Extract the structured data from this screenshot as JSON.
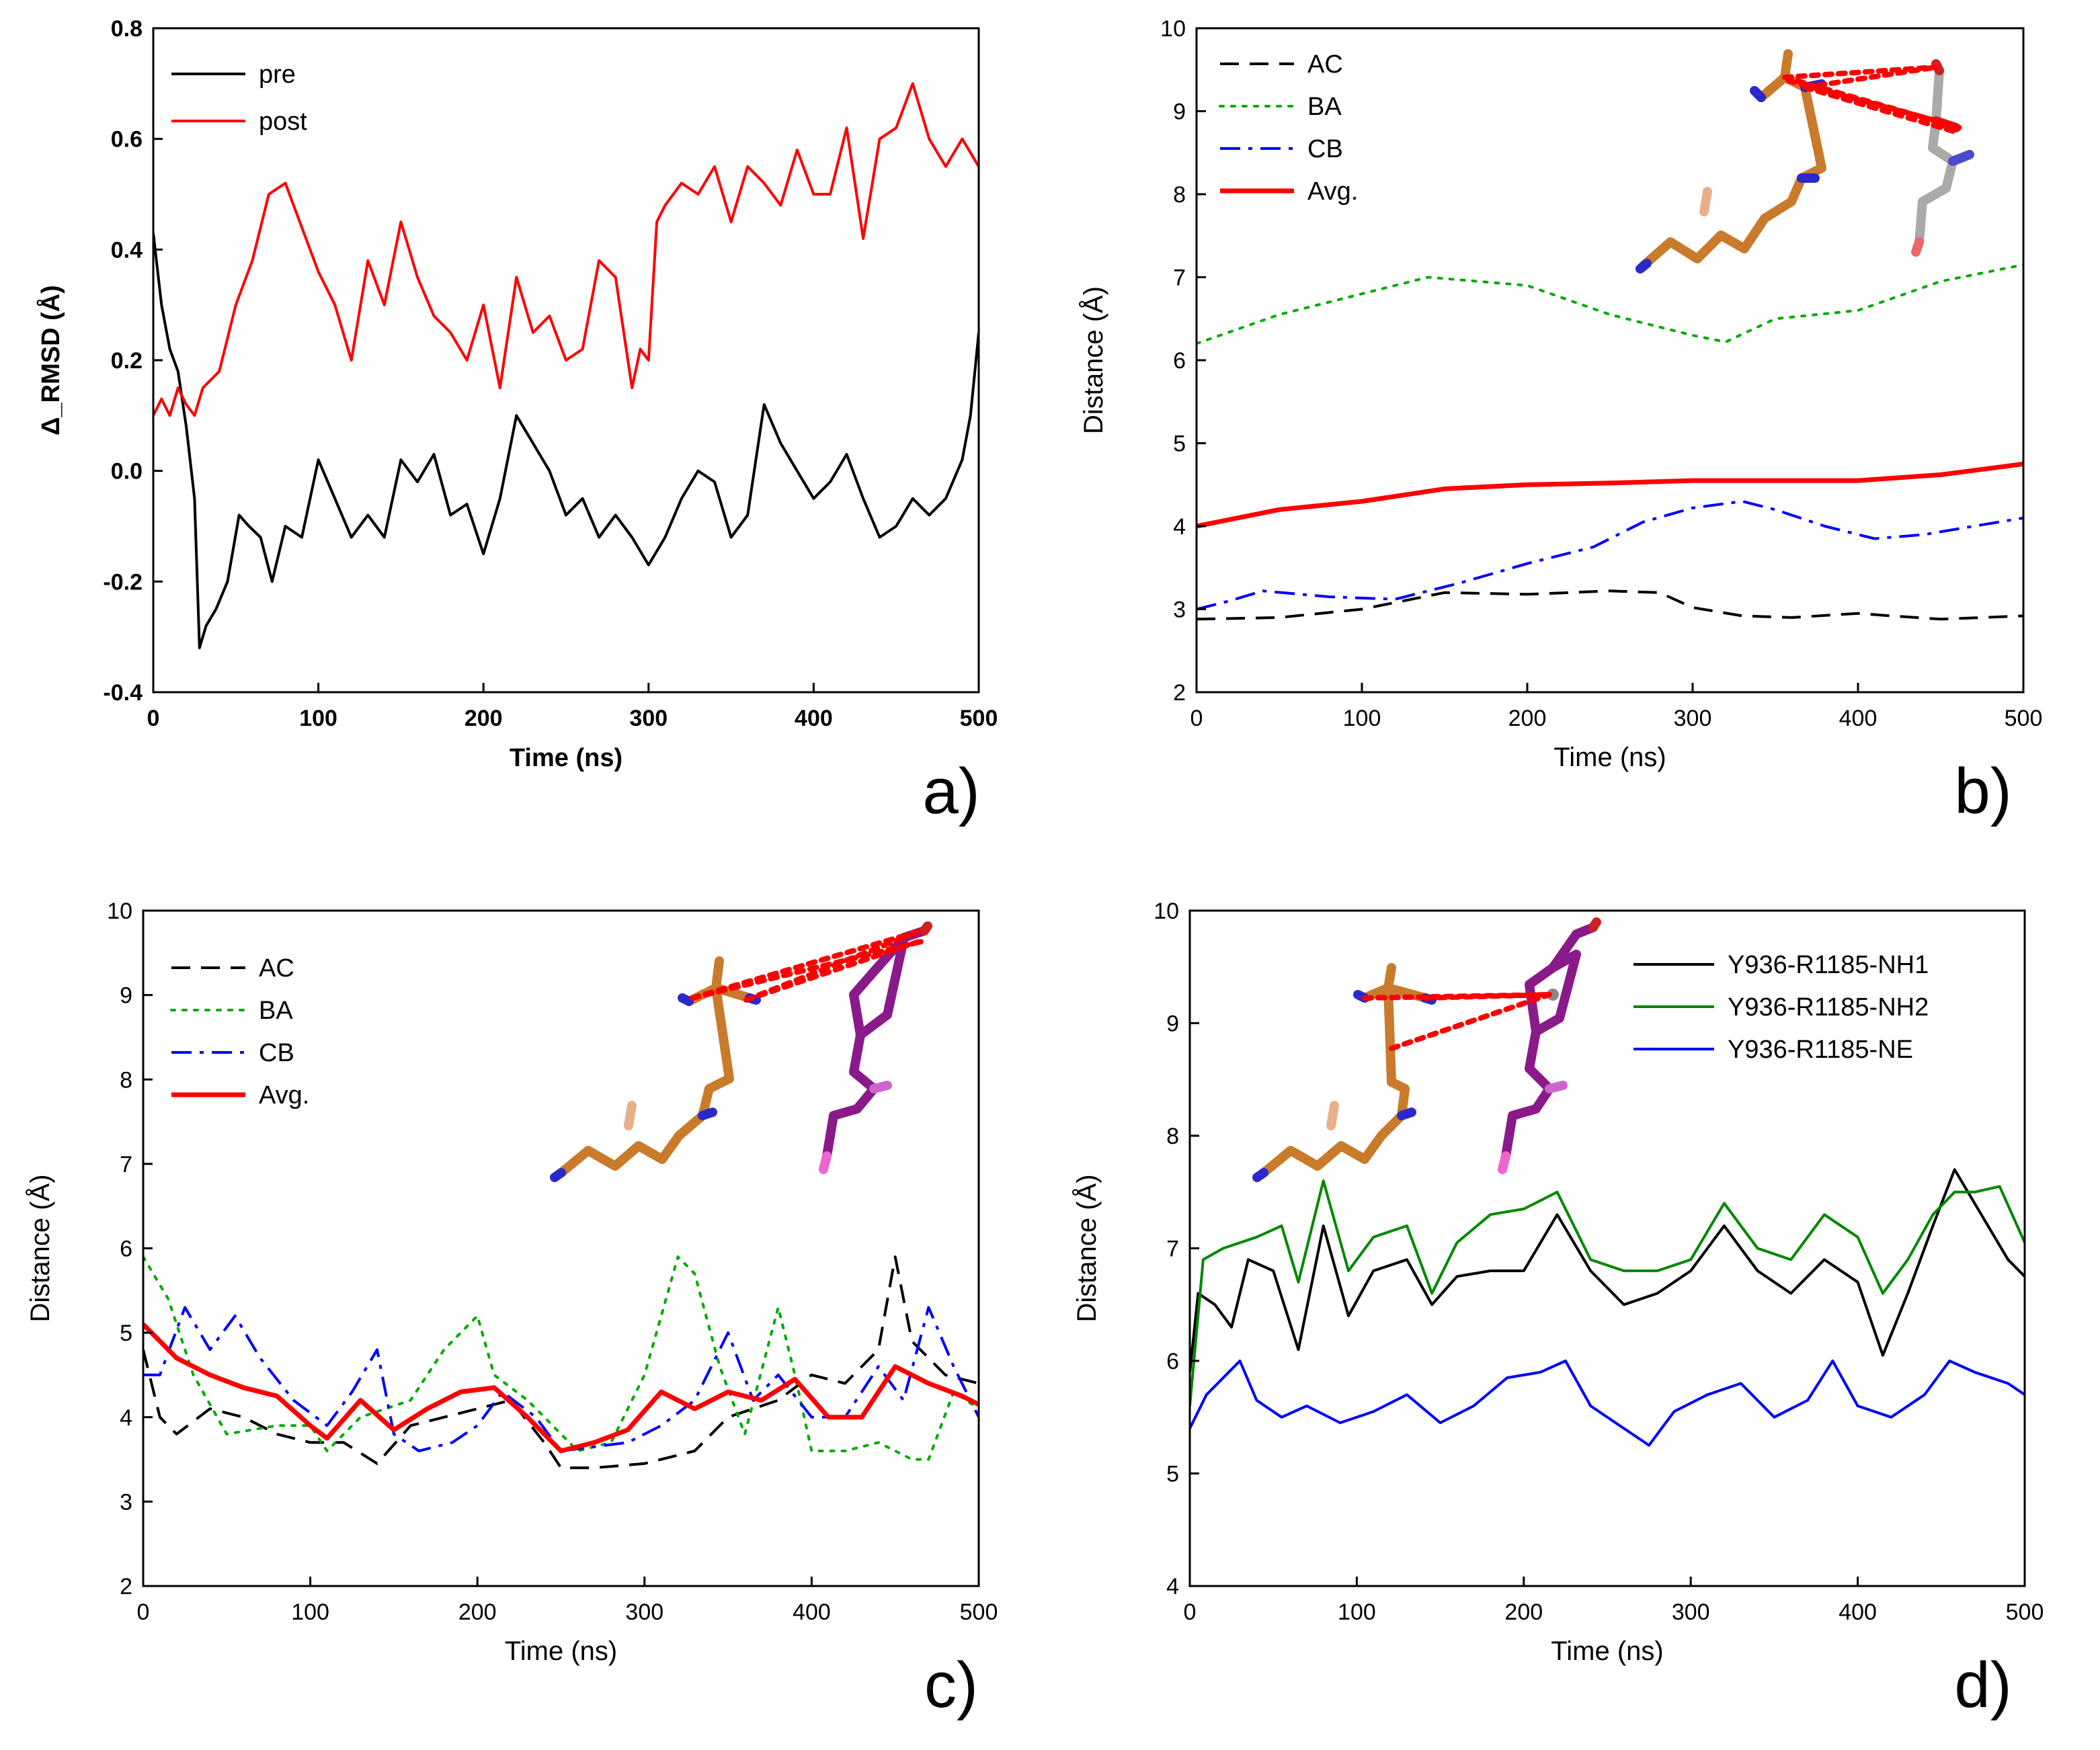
{
  "chart_data": [
    {
      "panel": "a)",
      "type": "line",
      "xlabel": "Time (ns)",
      "ylabel": "Δ_RMSD (Å)",
      "xlim": [
        0,
        500
      ],
      "ylim": [
        -0.4,
        0.8
      ],
      "xticks": [
        0,
        100,
        200,
        300,
        400,
        500
      ],
      "xtick_labels": [
        "0",
        "100",
        "200",
        "300",
        "400",
        "500"
      ],
      "yticks": [
        -0.4,
        -0.2,
        0.0,
        0.2,
        0.4,
        0.6,
        0.8
      ],
      "ytick_labels": [
        "-0.4",
        "-0.2",
        "0.0",
        "0.2",
        "0.4",
        "0.6",
        "0.8"
      ],
      "legend_position": "top-left",
      "series": [
        {
          "name": "pre",
          "color": "#000000",
          "style": "solid",
          "x": [
            0,
            5,
            10,
            15,
            20,
            25,
            28,
            32,
            38,
            45,
            52,
            58,
            65,
            72,
            80,
            90,
            100,
            110,
            120,
            130,
            140,
            150,
            160,
            170,
            180,
            190,
            200,
            210,
            220,
            230,
            240,
            250,
            260,
            270,
            280,
            290,
            300,
            310,
            320,
            330,
            340,
            350,
            360,
            370,
            380,
            390,
            400,
            410,
            420,
            430,
            440,
            450,
            460,
            470,
            480,
            490,
            495,
            500
          ],
          "y": [
            0.43,
            0.3,
            0.22,
            0.18,
            0.08,
            -0.05,
            -0.32,
            -0.28,
            -0.25,
            -0.2,
            -0.08,
            -0.1,
            -0.12,
            -0.2,
            -0.1,
            -0.12,
            0.02,
            -0.05,
            -0.12,
            -0.08,
            -0.12,
            0.02,
            -0.02,
            0.03,
            -0.08,
            -0.06,
            -0.15,
            -0.05,
            0.1,
            0.05,
            0.0,
            -0.08,
            -0.05,
            -0.12,
            -0.08,
            -0.12,
            -0.17,
            -0.12,
            -0.05,
            0.0,
            -0.02,
            -0.12,
            -0.08,
            0.12,
            0.05,
            0.0,
            -0.05,
            -0.02,
            0.03,
            -0.05,
            -0.12,
            -0.1,
            -0.05,
            -0.08,
            -0.05,
            0.02,
            0.1,
            0.25
          ]
        },
        {
          "name": "post",
          "color": "#ff0000",
          "style": "solid",
          "x": [
            0,
            5,
            10,
            15,
            20,
            25,
            30,
            40,
            50,
            60,
            70,
            80,
            90,
            100,
            110,
            120,
            130,
            140,
            150,
            160,
            170,
            180,
            190,
            200,
            210,
            220,
            230,
            240,
            250,
            260,
            270,
            280,
            290,
            295,
            300,
            305,
            310,
            320,
            330,
            340,
            350,
            360,
            370,
            380,
            390,
            400,
            410,
            420,
            430,
            440,
            450,
            460,
            470,
            480,
            490,
            500
          ],
          "y": [
            0.1,
            0.13,
            0.1,
            0.15,
            0.12,
            0.1,
            0.15,
            0.18,
            0.3,
            0.38,
            0.5,
            0.52,
            0.44,
            0.36,
            0.3,
            0.2,
            0.38,
            0.3,
            0.45,
            0.35,
            0.28,
            0.25,
            0.2,
            0.3,
            0.15,
            0.35,
            0.25,
            0.28,
            0.2,
            0.22,
            0.38,
            0.35,
            0.15,
            0.22,
            0.2,
            0.45,
            0.48,
            0.52,
            0.5,
            0.55,
            0.45,
            0.55,
            0.52,
            0.48,
            0.58,
            0.5,
            0.5,
            0.62,
            0.42,
            0.6,
            0.62,
            0.7,
            0.6,
            0.55,
            0.6,
            0.55
          ]
        }
      ]
    },
    {
      "panel": "b)",
      "type": "line",
      "xlabel": "Time (ns)",
      "ylabel": "Distance (Å)",
      "xlim": [
        0,
        500
      ],
      "ylim": [
        2,
        10
      ],
      "xticks": [
        0,
        100,
        200,
        300,
        400,
        500
      ],
      "xtick_labels": [
        "0",
        "100",
        "200",
        "300",
        "400",
        "500"
      ],
      "yticks": [
        2,
        3,
        4,
        5,
        6,
        7,
        8,
        9,
        10
      ],
      "ytick_labels": [
        "2",
        "3",
        "4",
        "5",
        "6",
        "7",
        "8",
        "9",
        "10"
      ],
      "legend_position": "top-left",
      "series": [
        {
          "name": "AC",
          "color": "#000000",
          "style": "dashed",
          "x": [
            0,
            50,
            100,
            150,
            200,
            250,
            280,
            300,
            330,
            360,
            400,
            420,
            450,
            500
          ],
          "y": [
            2.88,
            2.9,
            3.0,
            3.2,
            3.18,
            3.22,
            3.2,
            3.02,
            2.92,
            2.9,
            2.95,
            2.92,
            2.88,
            2.92
          ]
        },
        {
          "name": "BA",
          "color": "#00aa00",
          "style": "dotted",
          "x": [
            0,
            50,
            100,
            140,
            200,
            250,
            300,
            320,
            350,
            400,
            450,
            500
          ],
          "y": [
            6.2,
            6.55,
            6.8,
            7.0,
            6.9,
            6.55,
            6.3,
            6.22,
            6.5,
            6.6,
            6.95,
            7.15
          ]
        },
        {
          "name": "CB",
          "color": "#0000ff",
          "style": "dashdot",
          "x": [
            0,
            20,
            40,
            80,
            120,
            160,
            200,
            240,
            270,
            300,
            330,
            350,
            380,
            410,
            440,
            470,
            500
          ],
          "y": [
            3.0,
            3.1,
            3.22,
            3.15,
            3.12,
            3.32,
            3.55,
            3.75,
            4.05,
            4.22,
            4.3,
            4.2,
            4.0,
            3.85,
            3.9,
            4.0,
            4.1
          ]
        },
        {
          "name": "Avg.",
          "color": "#ff0000",
          "style": "solid-thick",
          "x": [
            0,
            50,
            100,
            150,
            200,
            250,
            300,
            350,
            400,
            450,
            500
          ],
          "y": [
            4.0,
            4.2,
            4.3,
            4.45,
            4.5,
            4.52,
            4.55,
            4.55,
            4.55,
            4.62,
            4.75
          ]
        }
      ]
    },
    {
      "panel": "c)",
      "type": "line",
      "xlabel": "Time (ns)",
      "ylabel": "Distance (Å)",
      "xlim": [
        0,
        500
      ],
      "ylim": [
        2,
        10
      ],
      "xticks": [
        0,
        100,
        200,
        300,
        400,
        500
      ],
      "xtick_labels": [
        "0",
        "100",
        "200",
        "300",
        "400",
        "500"
      ],
      "yticks": [
        2,
        3,
        4,
        5,
        6,
        7,
        8,
        9,
        10
      ],
      "ytick_labels": [
        "2",
        "3",
        "4",
        "5",
        "6",
        "7",
        "8",
        "9",
        "10"
      ],
      "legend_position": "top-left",
      "series": [
        {
          "name": "AC",
          "color": "#000000",
          "style": "dashed",
          "x": [
            0,
            10,
            20,
            40,
            60,
            80,
            100,
            120,
            140,
            160,
            180,
            200,
            220,
            240,
            250,
            270,
            300,
            330,
            350,
            380,
            400,
            420,
            440,
            450,
            460,
            480,
            500
          ],
          "y": [
            4.8,
            4.0,
            3.8,
            4.1,
            4.0,
            3.8,
            3.7,
            3.7,
            3.45,
            3.9,
            4.0,
            4.1,
            4.2,
            3.7,
            3.4,
            3.4,
            3.45,
            3.6,
            4.0,
            4.2,
            4.5,
            4.4,
            4.8,
            5.9,
            4.9,
            4.5,
            4.4
          ]
        },
        {
          "name": "BA",
          "color": "#00aa00",
          "style": "dotted",
          "x": [
            0,
            15,
            30,
            50,
            80,
            100,
            110,
            130,
            160,
            180,
            200,
            210,
            230,
            260,
            280,
            300,
            310,
            320,
            330,
            345,
            360,
            380,
            390,
            400,
            420,
            440,
            460,
            470,
            485,
            500
          ],
          "y": [
            5.9,
            5.4,
            4.5,
            3.8,
            3.9,
            3.9,
            3.6,
            4.0,
            4.2,
            4.8,
            5.2,
            4.5,
            4.2,
            3.6,
            3.7,
            4.5,
            5.2,
            5.9,
            5.7,
            4.6,
            3.8,
            5.3,
            4.5,
            3.6,
            3.6,
            3.7,
            3.5,
            3.5,
            4.3,
            4.1
          ]
        },
        {
          "name": "CB",
          "color": "#0000ff",
          "style": "dashdot",
          "x": [
            0,
            10,
            25,
            40,
            55,
            70,
            90,
            110,
            125,
            140,
            150,
            165,
            185,
            200,
            215,
            235,
            250,
            270,
            290,
            310,
            330,
            350,
            365,
            380,
            400,
            420,
            440,
            455,
            470,
            485,
            500
          ],
          "y": [
            4.5,
            4.5,
            5.3,
            4.8,
            5.2,
            4.7,
            4.2,
            3.9,
            4.3,
            4.8,
            3.8,
            3.6,
            3.7,
            3.9,
            4.3,
            4.0,
            3.6,
            3.65,
            3.7,
            3.9,
            4.2,
            5.0,
            4.2,
            4.5,
            4.0,
            4.0,
            4.6,
            4.2,
            5.3,
            4.6,
            4.0
          ]
        },
        {
          "name": "Avg.",
          "color": "#ff0000",
          "style": "solid-thick",
          "x": [
            0,
            20,
            40,
            60,
            80,
            100,
            110,
            130,
            150,
            170,
            190,
            210,
            230,
            250,
            270,
            290,
            310,
            330,
            350,
            370,
            390,
            410,
            430,
            450,
            470,
            490,
            500
          ],
          "y": [
            5.1,
            4.7,
            4.5,
            4.35,
            4.25,
            3.9,
            3.75,
            4.2,
            3.85,
            4.1,
            4.3,
            4.35,
            4.0,
            3.6,
            3.7,
            3.85,
            4.3,
            4.1,
            4.3,
            4.2,
            4.45,
            4.0,
            4.0,
            4.6,
            4.4,
            4.25,
            4.15
          ]
        }
      ]
    },
    {
      "panel": "d)",
      "type": "line",
      "xlabel": "Time (ns)",
      "ylabel": "Distance (Å)",
      "xlim": [
        0,
        500
      ],
      "ylim": [
        4,
        10
      ],
      "xticks": [
        0,
        100,
        200,
        300,
        400,
        500
      ],
      "xtick_labels": [
        "0",
        "100",
        "200",
        "300",
        "400",
        "500"
      ],
      "yticks": [
        4,
        5,
        6,
        7,
        8,
        9,
        10
      ],
      "ytick_labels": [
        "4",
        "5",
        "6",
        "7",
        "8",
        "9",
        "10"
      ],
      "legend_position": "top-right",
      "series": [
        {
          "name": "Y936-R1185-NH1",
          "color": "#000000",
          "style": "solid",
          "x": [
            0,
            5,
            15,
            25,
            35,
            50,
            65,
            80,
            95,
            110,
            130,
            145,
            160,
            180,
            200,
            220,
            240,
            260,
            280,
            300,
            320,
            340,
            360,
            380,
            400,
            415,
            430,
            445,
            458,
            470,
            490,
            500
          ],
          "y": [
            5.9,
            6.6,
            6.5,
            6.3,
            6.9,
            6.8,
            6.1,
            7.2,
            6.4,
            6.8,
            6.9,
            6.5,
            6.75,
            6.8,
            6.8,
            7.3,
            6.8,
            6.5,
            6.6,
            6.8,
            7.2,
            6.8,
            6.6,
            6.9,
            6.7,
            6.05,
            6.6,
            7.2,
            7.7,
            7.4,
            6.9,
            6.75
          ]
        },
        {
          "name": "Y936-R1185-NH2",
          "color": "#008800",
          "style": "solid",
          "x": [
            0,
            8,
            20,
            40,
            55,
            65,
            80,
            95,
            110,
            130,
            145,
            160,
            180,
            200,
            220,
            240,
            260,
            280,
            300,
            320,
            340,
            360,
            380,
            400,
            415,
            430,
            445,
            458,
            470,
            485,
            500
          ],
          "y": [
            5.6,
            6.9,
            7.0,
            7.1,
            7.2,
            6.7,
            7.6,
            6.8,
            7.1,
            7.2,
            6.6,
            7.05,
            7.3,
            7.35,
            7.5,
            6.9,
            6.8,
            6.8,
            6.9,
            7.4,
            7.0,
            6.9,
            7.3,
            7.1,
            6.6,
            6.9,
            7.3,
            7.5,
            7.5,
            7.55,
            7.05
          ]
        },
        {
          "name": "Y936-R1185-NE",
          "color": "#0000ff",
          "style": "solid",
          "x": [
            0,
            10,
            20,
            30,
            40,
            55,
            70,
            90,
            110,
            130,
            150,
            170,
            190,
            210,
            225,
            240,
            260,
            275,
            290,
            310,
            330,
            350,
            370,
            385,
            400,
            420,
            440,
            455,
            470,
            490,
            500
          ],
          "y": [
            5.4,
            5.7,
            5.85,
            6.0,
            5.65,
            5.5,
            5.6,
            5.45,
            5.55,
            5.7,
            5.45,
            5.6,
            5.85,
            5.9,
            6.0,
            5.6,
            5.4,
            5.25,
            5.55,
            5.7,
            5.8,
            5.5,
            5.65,
            6.0,
            5.6,
            5.5,
            5.7,
            6.0,
            5.9,
            5.8,
            5.7
          ]
        }
      ]
    }
  ]
}
